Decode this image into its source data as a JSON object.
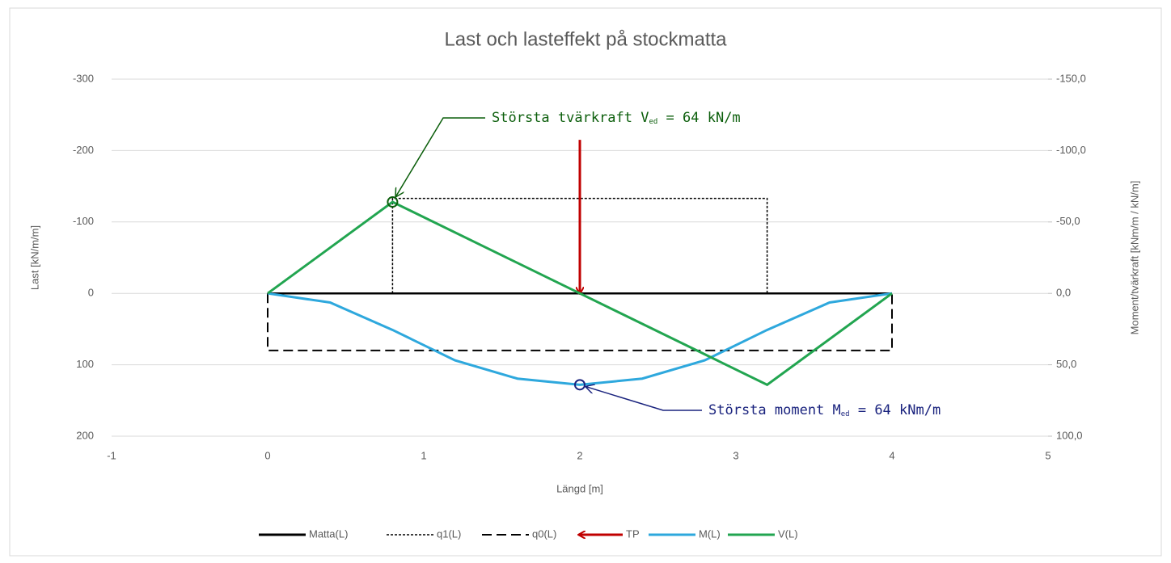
{
  "chart_data": {
    "type": "line",
    "title": "Last och lasteffekt på stockmatta",
    "x_label": "Längd [m]",
    "y_label": "Last [kN/m/m]",
    "y2_label": "Moment/tvärkraft [kNm/m / kN/m]",
    "xlim": [
      -1,
      5
    ],
    "xticks": [
      -1,
      0,
      1,
      2,
      3,
      4,
      5
    ],
    "ylim": [
      -300,
      200
    ],
    "yticks": [
      -300,
      -200,
      -100,
      0,
      100,
      200
    ],
    "y2lim": [
      -150,
      100
    ],
    "y2ticks": [
      {
        "value": -150,
        "label": "-150,0"
      },
      {
        "value": -100,
        "label": "-100,0"
      },
      {
        "value": -50,
        "label": "-50,0"
      },
      {
        "value": 0,
        "label": "0,0"
      },
      {
        "value": 50,
        "label": "50,0"
      },
      {
        "value": 100,
        "label": "100,0"
      }
    ],
    "y_reversed": true,
    "grid": true,
    "legend": "bottom",
    "series": [
      {
        "name": "Matta(L)",
        "color": "#000000",
        "style": "solid",
        "x": [
          0,
          4
        ],
        "values": [
          0,
          0
        ]
      },
      {
        "name": "q1(L)",
        "color": "#000000",
        "style": "dotted",
        "x": [
          0.8,
          0.8,
          3.2,
          3.2
        ],
        "values": [
          0,
          -133,
          -133,
          0
        ]
      },
      {
        "name": "q0(L)",
        "color": "#000000",
        "style": "dashed",
        "x": [
          0,
          0,
          4,
          4
        ],
        "values": [
          0,
          80,
          80,
          0
        ]
      },
      {
        "name": "TP",
        "color": "#c00000",
        "style": "arrow",
        "x": [
          2,
          2
        ],
        "values": [
          -215,
          0
        ]
      },
      {
        "name": "M(L)",
        "color": "#2ea8dd",
        "style": "solid",
        "axis": "y2",
        "x": [
          0,
          0.4,
          0.8,
          1.2,
          1.6,
          2,
          2.4,
          2.8,
          3.2,
          3.6,
          4
        ],
        "values": [
          0,
          6.4,
          25.6,
          46.9,
          59.7,
          64,
          59.7,
          46.9,
          25.6,
          6.4,
          0
        ]
      },
      {
        "name": "V(L)",
        "color": "#22a550",
        "style": "solid",
        "axis": "y2",
        "x": [
          0,
          0.8,
          2,
          3.2,
          4
        ],
        "values": [
          0,
          -64,
          0,
          64,
          0
        ]
      }
    ],
    "annotations": [
      {
        "text": [
          "Största tvärkraft V",
          "ed",
          " = 64 kN/m"
        ],
        "color": "#0b5e0b",
        "series": 5,
        "point": 1
      },
      {
        "text": [
          "Största moment M",
          "ed",
          " = 64 kNm/m"
        ],
        "color": "#1a237e",
        "series": 4,
        "point": 5
      }
    ]
  }
}
